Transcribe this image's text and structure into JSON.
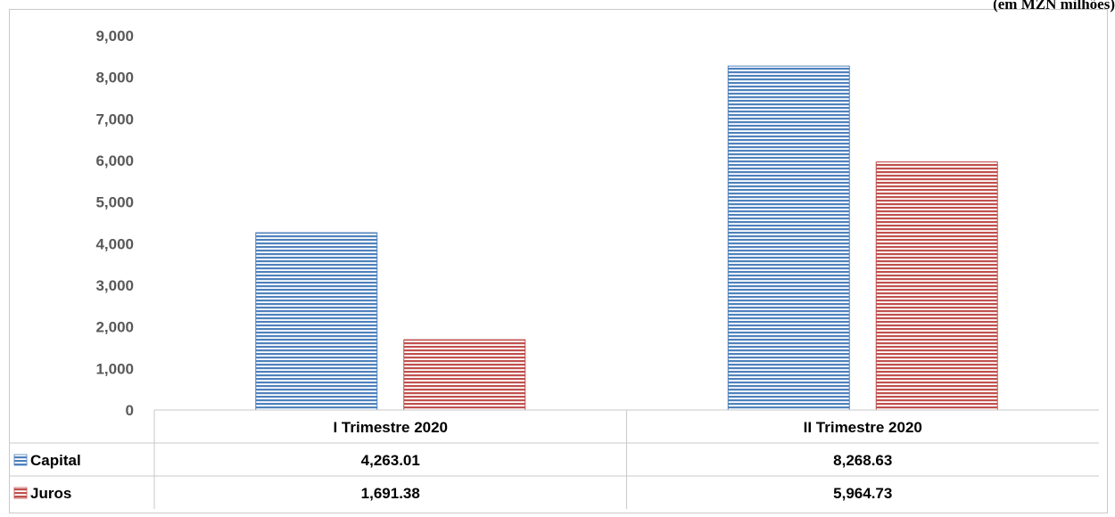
{
  "unit_note": "(em MZN milhões)",
  "chart_data": {
    "type": "bar",
    "categories": [
      "I Trimestre 2020",
      "II Trimestre 2020"
    ],
    "series": [
      {
        "name": "Capital",
        "values": [
          4263.01,
          8268.63
        ],
        "value_labels": [
          "4,263.01",
          "8,268.63"
        ],
        "color": "#4f81bd"
      },
      {
        "name": "Juros",
        "values": [
          1691.38,
          5964.73
        ],
        "value_labels": [
          "1,691.38",
          "5,964.73"
        ],
        "color": "#c0504d"
      }
    ],
    "ylim": [
      0,
      9000
    ],
    "yticks": [
      0,
      1000,
      2000,
      3000,
      4000,
      5000,
      6000,
      7000,
      8000,
      9000
    ],
    "ytick_labels": [
      "0",
      "1,000",
      "2,000",
      "3,000",
      "4,000",
      "5,000",
      "6,000",
      "7,000",
      "8,000",
      "9,000"
    ],
    "grid": false,
    "legend": "data-table",
    "pattern": "horizontal-stripes"
  }
}
